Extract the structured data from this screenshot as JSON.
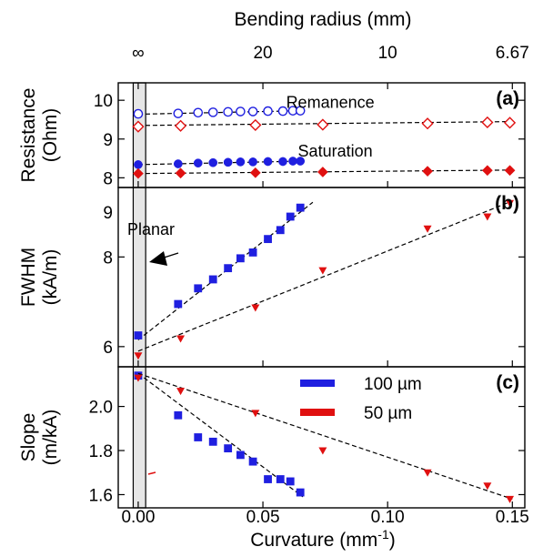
{
  "chart_data": {
    "type": "scatter",
    "x_axis": {
      "label": "Curvature (mm",
      "label_superscript": "-1",
      "label_suffix": ")",
      "range": [
        -0.008,
        0.155
      ],
      "ticks": [
        0.0,
        0.05,
        0.1,
        0.15
      ],
      "tick_labels": [
        "0.00",
        "0.05",
        "0.10",
        "0.15"
      ]
    },
    "top_axis": {
      "label": "Bending radius (mm)",
      "ticks": [
        0.0,
        0.05,
        0.1,
        0.15
      ],
      "tick_labels": [
        "∞",
        "20",
        "10",
        "6.67"
      ]
    },
    "planar_band": [
      -0.002,
      0.003
    ],
    "planar_label": "Planar",
    "panels": [
      {
        "label": "(a)",
        "ylabel": [
          "Resistance",
          "(Ohm)"
        ],
        "ylim": [
          7.75,
          10.45
        ],
        "yticks": [
          8,
          9,
          10
        ],
        "annotations": [
          {
            "text": "Remanence",
            "x": 0.077,
            "y": 9.8
          },
          {
            "text": "Saturation",
            "x": 0.079,
            "y": 8.55
          }
        ],
        "series": [
          {
            "name": "Remanence (100 µm)",
            "marker": "circle-open",
            "color": "#1f1fe0",
            "x": [
              0.0,
              0.016,
              0.024,
              0.03,
              0.036,
              0.041,
              0.046,
              0.052,
              0.058,
              0.062,
              0.065
            ],
            "y": [
              9.65,
              9.66,
              9.68,
              9.69,
              9.7,
              9.71,
              9.71,
              9.72,
              9.72,
              9.73,
              9.73
            ],
            "fit": [
              [
                0.0,
                9.64
              ],
              [
                0.065,
                9.73
              ]
            ]
          },
          {
            "name": "Remanence (50 µm)",
            "marker": "diamond-open",
            "color": "#e01010",
            "x": [
              0.0,
              0.017,
              0.047,
              0.074,
              0.116,
              0.14,
              0.149
            ],
            "y": [
              9.32,
              9.34,
              9.36,
              9.37,
              9.4,
              9.43,
              9.42
            ],
            "fit": [
              [
                0.0,
                9.35
              ],
              [
                0.15,
                9.45
              ]
            ]
          },
          {
            "name": "Saturation (100 µm)",
            "marker": "circle",
            "color": "#1f1fe0",
            "x": [
              0.0,
              0.016,
              0.024,
              0.03,
              0.036,
              0.041,
              0.046,
              0.052,
              0.058,
              0.062,
              0.065
            ],
            "y": [
              8.34,
              8.36,
              8.38,
              8.39,
              8.4,
              8.41,
              8.41,
              8.42,
              8.42,
              8.43,
              8.43
            ],
            "fit": [
              [
                0.0,
                8.34
              ],
              [
                0.065,
                8.43
              ]
            ]
          },
          {
            "name": "Saturation (50 µm)",
            "marker": "diamond",
            "color": "#e01010",
            "x": [
              0.0,
              0.017,
              0.047,
              0.074,
              0.116,
              0.14,
              0.149
            ],
            "y": [
              8.11,
              8.12,
              8.13,
              8.15,
              8.17,
              8.19,
              8.19
            ],
            "fit": [
              [
                0.0,
                8.11
              ],
              [
                0.15,
                8.2
              ]
            ]
          }
        ]
      },
      {
        "label": "(b)",
        "ylabel": [
          "FWHM",
          "(kA/m)"
        ],
        "ylim": [
          5.55,
          9.55
        ],
        "yticks": [
          6,
          8
        ],
        "extra_tick_labels": [
          {
            "value": 9,
            "text": "9"
          }
        ],
        "series": [
          {
            "name": "100 µm",
            "marker": "square",
            "color": "#1f1fe0",
            "x": [
              0.0,
              0.016,
              0.024,
              0.03,
              0.036,
              0.041,
              0.046,
              0.052,
              0.057,
              0.061,
              0.065
            ],
            "y": [
              6.25,
              6.95,
              7.3,
              7.5,
              7.75,
              7.97,
              8.1,
              8.4,
              8.6,
              8.9,
              9.1
            ],
            "fit": [
              [
                0.0,
                6.15
              ],
              [
                0.07,
                9.22
              ]
            ]
          },
          {
            "name": "50 µm",
            "marker": "triangle-down",
            "color": "#e01010",
            "x": [
              0.0,
              0.017,
              0.047,
              0.074,
              0.116,
              0.14,
              0.149
            ],
            "y": [
              5.8,
              6.18,
              6.87,
              7.7,
              8.63,
              8.9,
              9.2
            ],
            "fit": [
              [
                0.0,
                5.9
              ],
              [
                0.15,
                9.25
              ]
            ]
          }
        ]
      },
      {
        "label": "(c)",
        "ylabel": [
          "Slope",
          "(m/kA)"
        ],
        "ylim": [
          1.54,
          2.18
        ],
        "yticks": [
          1.6,
          1.8,
          2.0
        ],
        "tick_labels": [
          "1.6",
          "1.8",
          "2.0"
        ],
        "series": [
          {
            "name": "100 µm",
            "marker": "square",
            "color": "#1f1fe0",
            "x": [
              0.0,
              0.016,
              0.024,
              0.03,
              0.036,
              0.041,
              0.046,
              0.052,
              0.057,
              0.061,
              0.065
            ],
            "y": [
              2.14,
              1.96,
              1.86,
              1.84,
              1.81,
              1.78,
              1.75,
              1.67,
              1.67,
              1.66,
              1.61
            ],
            "fit": [
              [
                0.0,
                2.15
              ],
              [
                0.066,
                1.59
              ]
            ]
          },
          {
            "name": "50 µm",
            "marker": "triangle-down",
            "color": "#e01010",
            "x": [
              0.0,
              0.017,
              0.047,
              0.074,
              0.116,
              0.14,
              0.149
            ],
            "y": [
              2.13,
              2.07,
              1.97,
              1.8,
              1.7,
              1.64,
              1.58
            ],
            "fit": [
              [
                0.0,
                2.15
              ],
              [
                0.15,
                1.58
              ]
            ]
          }
        ],
        "legend": {
          "position": "top-right",
          "entries": [
            {
              "label": "100 µm",
              "color": "#1f1fe0"
            },
            {
              "label": "50 µm",
              "color": "#e01010"
            }
          ]
        }
      }
    ]
  }
}
